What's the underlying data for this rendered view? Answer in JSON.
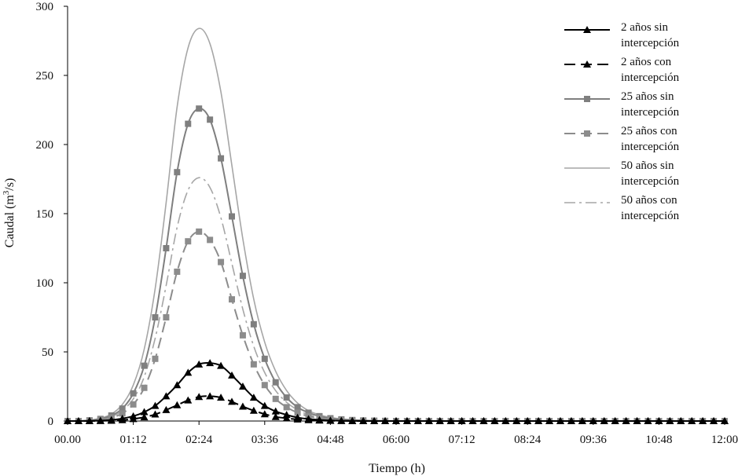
{
  "chart_data": {
    "type": "line",
    "ylabel": "Caudal (m",
    "ylabel_sup": "3",
    "ylabel_tail": "/s)",
    "xlabel": "Tiempo (h)",
    "ylim": [
      0,
      300
    ],
    "xlim_minutes": [
      0,
      720
    ],
    "yticks": [
      0,
      50,
      100,
      150,
      200,
      250,
      300
    ],
    "xtick_labels": [
      "00.00",
      "01:12",
      "02:24",
      "03:36",
      "04:48",
      "06:00",
      "07:12",
      "08:24",
      "09:36",
      "10:48",
      "12:00"
    ],
    "x_minutes": [
      0,
      12,
      24,
      36,
      48,
      60,
      72,
      84,
      96,
      108,
      120,
      132,
      144,
      156,
      168,
      180,
      192,
      204,
      216,
      228,
      240,
      252,
      264,
      276,
      288,
      300,
      312,
      324,
      336,
      348,
      360,
      372,
      384,
      396,
      408,
      420,
      432,
      444,
      456,
      468,
      480,
      492,
      504,
      516,
      528,
      540,
      552,
      564,
      576,
      588,
      600,
      612,
      624,
      636,
      648,
      660,
      672,
      684,
      696,
      708,
      720
    ],
    "legend_position": "top-right",
    "grid": false,
    "series": [
      {
        "name": "2 años sin intercepción",
        "line": "solid",
        "marker": "triangle",
        "color": "#000000",
        "values": [
          0,
          0,
          0.1,
          0.3,
          0.8,
          1.8,
          3.5,
          6.5,
          11,
          18,
          26,
          35,
          41,
          42,
          40,
          33,
          25,
          17,
          11,
          7,
          4.5,
          2.5,
          1.5,
          0.8,
          0.4,
          0.2,
          0.1,
          0.05,
          0,
          0,
          0,
          0,
          0,
          0,
          0,
          0,
          0,
          0,
          0,
          0,
          0,
          0,
          0,
          0,
          0,
          0,
          0,
          0,
          0,
          0,
          0,
          0,
          0,
          0,
          0,
          0,
          0,
          0,
          0,
          0,
          0
        ]
      },
      {
        "name": "2 años con intercepción",
        "line": "dash",
        "marker": "triangle",
        "color": "#000000",
        "values": [
          0,
          0,
          0,
          0.1,
          0.3,
          0.7,
          1.5,
          2.8,
          4.8,
          8,
          11.5,
          15,
          17.5,
          18,
          17,
          14,
          10.5,
          7.5,
          5,
          3,
          2,
          1.2,
          0.7,
          0.4,
          0.2,
          0.1,
          0,
          0,
          0,
          0,
          0,
          0,
          0,
          0,
          0,
          0,
          0,
          0,
          0,
          0,
          0,
          0,
          0,
          0,
          0,
          0,
          0,
          0,
          0,
          0,
          0,
          0,
          0,
          0,
          0,
          0,
          0,
          0,
          0,
          0,
          0
        ]
      },
      {
        "name": "25 años sin intercepción",
        "line": "solid",
        "marker": "square",
        "color": "#7f7f7f",
        "values": [
          0,
          0,
          0.5,
          1.5,
          4,
          9,
          20,
          40,
          75,
          125,
          180,
          215,
          226,
          218,
          190,
          148,
          105,
          70,
          45,
          28,
          17,
          10,
          6,
          3.5,
          2,
          1.2,
          0.7,
          0.4,
          0.2,
          0.1,
          0,
          0,
          0,
          0,
          0,
          0,
          0,
          0,
          0,
          0,
          0,
          0,
          0,
          0,
          0,
          0,
          0,
          0,
          0,
          0,
          0,
          0,
          0,
          0,
          0,
          0,
          0,
          0,
          0,
          0,
          0
        ]
      },
      {
        "name": "25 años con intercepción",
        "line": "dash",
        "marker": "square",
        "color": "#8c8c8c",
        "values": [
          0,
          0,
          0.3,
          1,
          2.5,
          5.5,
          12,
          24,
          45,
          75,
          108,
          130,
          137,
          131,
          115,
          88,
          62,
          41,
          26,
          16,
          10,
          6,
          3.5,
          2,
          1.2,
          0.7,
          0.4,
          0.2,
          0.1,
          0,
          0,
          0,
          0,
          0,
          0,
          0,
          0,
          0,
          0,
          0,
          0,
          0,
          0,
          0,
          0,
          0,
          0,
          0,
          0,
          0,
          0,
          0,
          0,
          0,
          0,
          0,
          0,
          0,
          0,
          0,
          0
        ]
      },
      {
        "name": "50 años sin intercepción",
        "line": "solid",
        "marker": "none",
        "color": "#a6a6a6",
        "values": [
          0,
          0,
          0.6,
          2,
          5,
          12,
          26,
          52,
          96,
          158,
          227,
          270,
          284,
          273,
          238,
          185,
          132,
          88,
          57,
          36,
          22,
          13,
          7.5,
          4.5,
          2.6,
          1.5,
          0.9,
          0.5,
          0.3,
          0.1,
          0,
          0,
          0,
          0,
          0,
          0,
          0,
          0,
          0,
          0,
          0,
          0,
          0,
          0,
          0,
          0,
          0,
          0,
          0,
          0,
          0,
          0,
          0,
          0,
          0,
          0,
          0,
          0,
          0,
          0,
          0
        ]
      },
      {
        "name": "50 años con intercepción",
        "line": "dashdot",
        "marker": "none",
        "color": "#a6a6a6",
        "values": [
          0,
          0,
          0.4,
          1.3,
          3.2,
          7.5,
          16,
          32,
          60,
          98,
          140,
          167,
          176,
          169,
          147,
          114,
          81,
          54,
          35,
          22,
          13.5,
          8,
          4.5,
          2.7,
          1.6,
          0.9,
          0.5,
          0.3,
          0.1,
          0,
          0,
          0,
          0,
          0,
          0,
          0,
          0,
          0,
          0,
          0,
          0,
          0,
          0,
          0,
          0,
          0,
          0,
          0,
          0,
          0,
          0,
          0,
          0,
          0,
          0,
          0,
          0,
          0,
          0,
          0,
          0
        ]
      }
    ]
  }
}
